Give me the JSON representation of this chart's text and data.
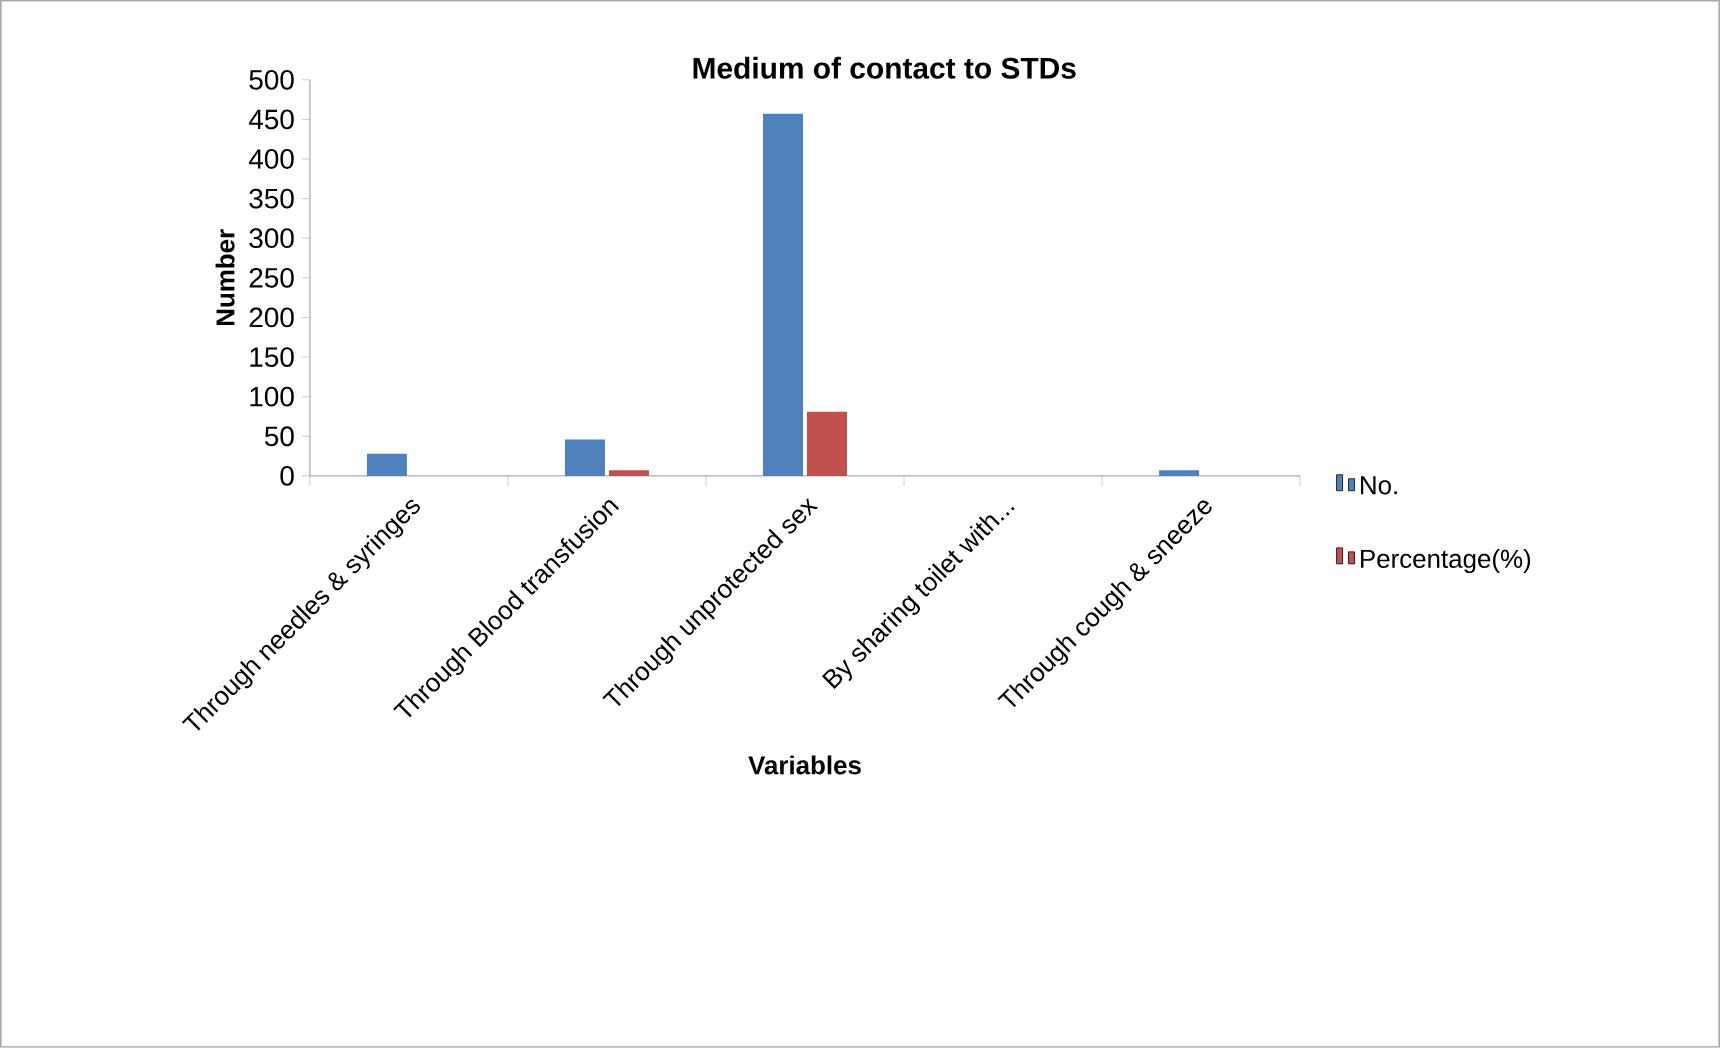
{
  "chart_data": {
    "type": "bar",
    "title": "Medium of contact to STDs",
    "xlabel": "Variables",
    "ylabel": "Number",
    "categories": [
      "Through needles & syringes",
      "Through Blood transfusion",
      "Through unprotected sex",
      "By sharing toilet with...",
      "Through cough & sneeze"
    ],
    "series": [
      {
        "name": "No.",
        "color": "#4f81bd",
        "values": [
          28,
          46,
          457,
          0,
          7
        ]
      },
      {
        "name": "Percentage(%)",
        "color": "#c0504d",
        "values": [
          0,
          7,
          81,
          0,
          0
        ]
      }
    ],
    "ylim": [
      0,
      500
    ],
    "yticks": [
      0,
      50,
      100,
      150,
      200,
      250,
      300,
      350,
      400,
      450,
      500
    ],
    "grid": false,
    "legend": "right"
  }
}
